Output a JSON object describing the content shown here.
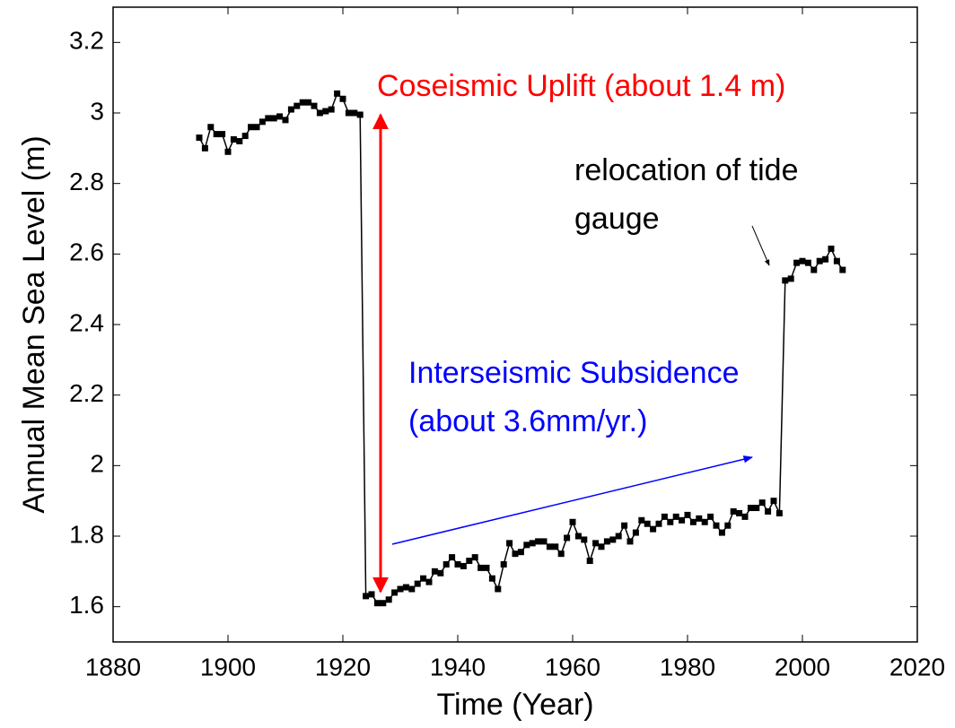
{
  "chart_data": {
    "type": "line",
    "xlabel": "Time (Year)",
    "ylabel": "Annual Mean Sea Level (m)",
    "xlim": [
      1880,
      2020
    ],
    "xticks": [
      1880,
      1900,
      1920,
      1940,
      1960,
      1980,
      2000,
      2020
    ],
    "ylim": [
      1.5,
      3.3
    ],
    "yticks": [
      1.6,
      1.8,
      2,
      2.2,
      2.4,
      2.6,
      2.8,
      3,
      3.2
    ],
    "grid": false,
    "series": [
      {
        "color": "#000000",
        "x": [
          1895,
          1896,
          1897,
          1898,
          1899,
          1900,
          1901,
          1902,
          1903,
          1904,
          1905,
          1906,
          1907,
          1908,
          1909,
          1910,
          1911,
          1912,
          1913,
          1914,
          1915,
          1916,
          1917,
          1918,
          1919,
          1920,
          1921,
          1922,
          1923,
          1924,
          1925,
          1926,
          1927,
          1928,
          1929,
          1930,
          1931,
          1932,
          1933,
          1934,
          1935,
          1936,
          1937,
          1938,
          1939,
          1940,
          1941,
          1942,
          1943,
          1944,
          1945,
          1946,
          1947,
          1948,
          1949,
          1950,
          1951,
          1952,
          1953,
          1954,
          1955,
          1956,
          1957,
          1958,
          1959,
          1960,
          1961,
          1962,
          1963,
          1964,
          1965,
          1966,
          1967,
          1968,
          1969,
          1970,
          1971,
          1972,
          1973,
          1974,
          1975,
          1976,
          1977,
          1978,
          1979,
          1980,
          1981,
          1982,
          1983,
          1984,
          1985,
          1986,
          1987,
          1988,
          1989,
          1990,
          1991,
          1992,
          1993,
          1994,
          1995,
          1996,
          1997,
          1998,
          1999,
          2000,
          2001,
          2002,
          2003,
          2004,
          2005,
          2006,
          2007
        ],
        "values": [
          2.93,
          2.9,
          2.96,
          2.94,
          2.94,
          2.89,
          2.925,
          2.92,
          2.935,
          2.96,
          2.96,
          2.975,
          2.985,
          2.985,
          2.99,
          2.98,
          3.01,
          3.02,
          3.03,
          3.03,
          3.02,
          3.0,
          3.005,
          3.01,
          3.055,
          3.04,
          3.0,
          3.0,
          2.995,
          1.63,
          1.635,
          1.61,
          1.61,
          1.62,
          1.64,
          1.65,
          1.655,
          1.65,
          1.665,
          1.68,
          1.67,
          1.7,
          1.695,
          1.72,
          1.74,
          1.72,
          1.715,
          1.73,
          1.74,
          1.71,
          1.71,
          1.68,
          1.65,
          1.72,
          1.78,
          1.75,
          1.755,
          1.775,
          1.78,
          1.785,
          1.785,
          1.77,
          1.77,
          1.75,
          1.795,
          1.84,
          1.8,
          1.79,
          1.73,
          1.78,
          1.77,
          1.785,
          1.79,
          1.8,
          1.83,
          1.785,
          1.81,
          1.845,
          1.835,
          1.82,
          1.835,
          1.855,
          1.84,
          1.855,
          1.845,
          1.86,
          1.84,
          1.85,
          1.84,
          1.855,
          1.83,
          1.81,
          1.83,
          1.87,
          1.865,
          1.855,
          1.88,
          1.88,
          1.895,
          1.87,
          1.9,
          1.865,
          2.525,
          2.53,
          2.575,
          2.58,
          2.575,
          2.555,
          2.58,
          2.585,
          2.615,
          2.58,
          2.555
        ]
      }
    ],
    "annotations": [
      {
        "text": "Coseismic Uplift (about 1.4 m)",
        "color": "#ff0000"
      },
      {
        "text": "relocation of tide",
        "color": "#000000"
      },
      {
        "text": "gauge",
        "color": "#000000"
      },
      {
        "text": "Interseismic Subsidence",
        "color": "#0000ff"
      },
      {
        "text": "(about 3.6mm/yr.)",
        "color": "#0000ff"
      }
    ]
  }
}
